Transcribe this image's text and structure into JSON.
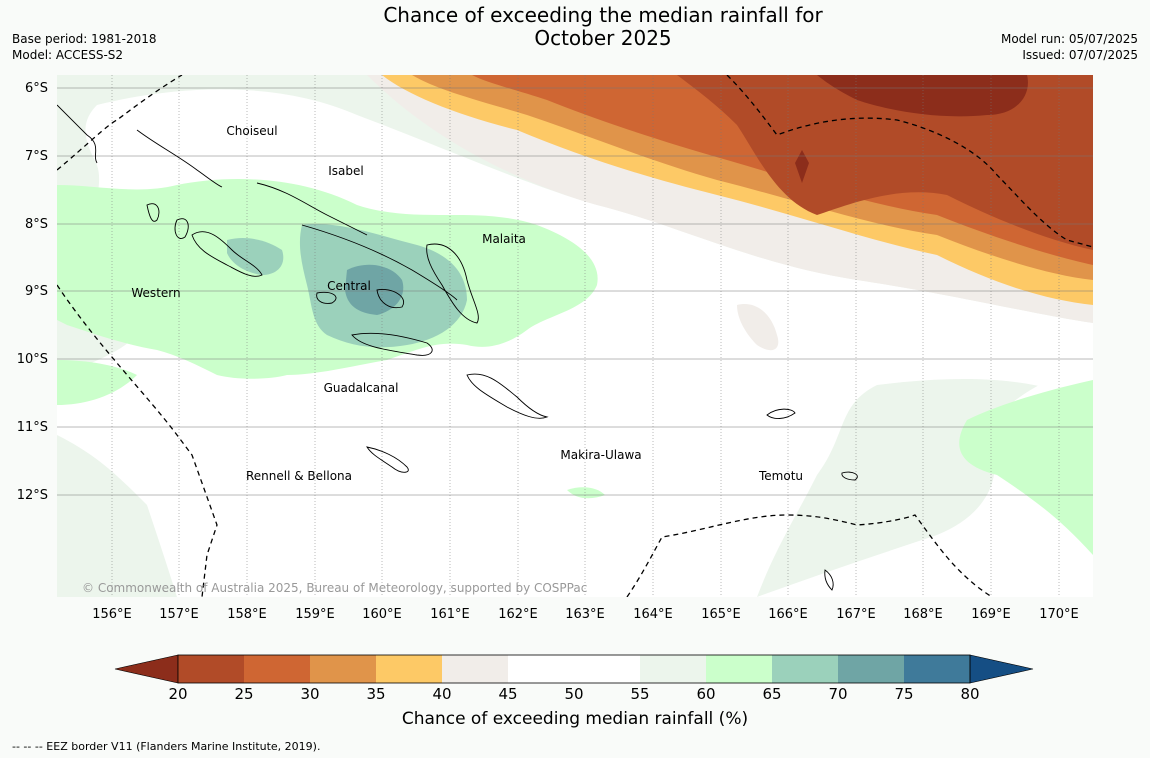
{
  "title": {
    "line1": "Chance of exceeding the median rainfall for",
    "line2": "October 2025"
  },
  "meta": {
    "base_period": "Base period: 1981-2018",
    "model": "Model: ACCESS-S2",
    "model_run": "Model run: 05/07/2025",
    "issued": "Issued: 07/07/2025"
  },
  "map": {
    "lat_labels": [
      "6°S",
      "7°S",
      "8°S",
      "9°S",
      "10°S",
      "11°S",
      "12°S"
    ],
    "lon_labels": [
      "156°E",
      "157°E",
      "158°E",
      "159°E",
      "160°E",
      "161°E",
      "162°E",
      "163°E",
      "164°E",
      "165°E",
      "166°E",
      "167°E",
      "168°E",
      "169°E",
      "170°E"
    ],
    "provinces": [
      "Choiseul",
      "Isabel",
      "Malaita",
      "Western",
      "Central",
      "Guadalcanal",
      "Makira-Ulawa",
      "Rennell & Bellona",
      "Temotu"
    ],
    "copyright": "© Commonwealth of Australia 2025, Bureau of Meteorology, supported by COSPPac"
  },
  "colorbar": {
    "title": "Chance of exceeding median rainfall (%)",
    "ticks": [
      "20",
      "25",
      "30",
      "35",
      "40",
      "45",
      "50",
      "55",
      "60",
      "65",
      "70",
      "75",
      "80"
    ],
    "colors": [
      "#8c2d1b",
      "#b14b28",
      "#cf6633",
      "#e0944a",
      "#fdc966",
      "#f1ede9",
      "#ffffff",
      "#ffffff",
      "#ecf5ec",
      "#cbffcb",
      "#9bd1bb",
      "#6fa5a5",
      "#3f7a9a",
      "#154e84"
    ]
  },
  "footnote": "--  --  -- EEZ border V11 (Flanders Marine Institute, 2019)."
}
